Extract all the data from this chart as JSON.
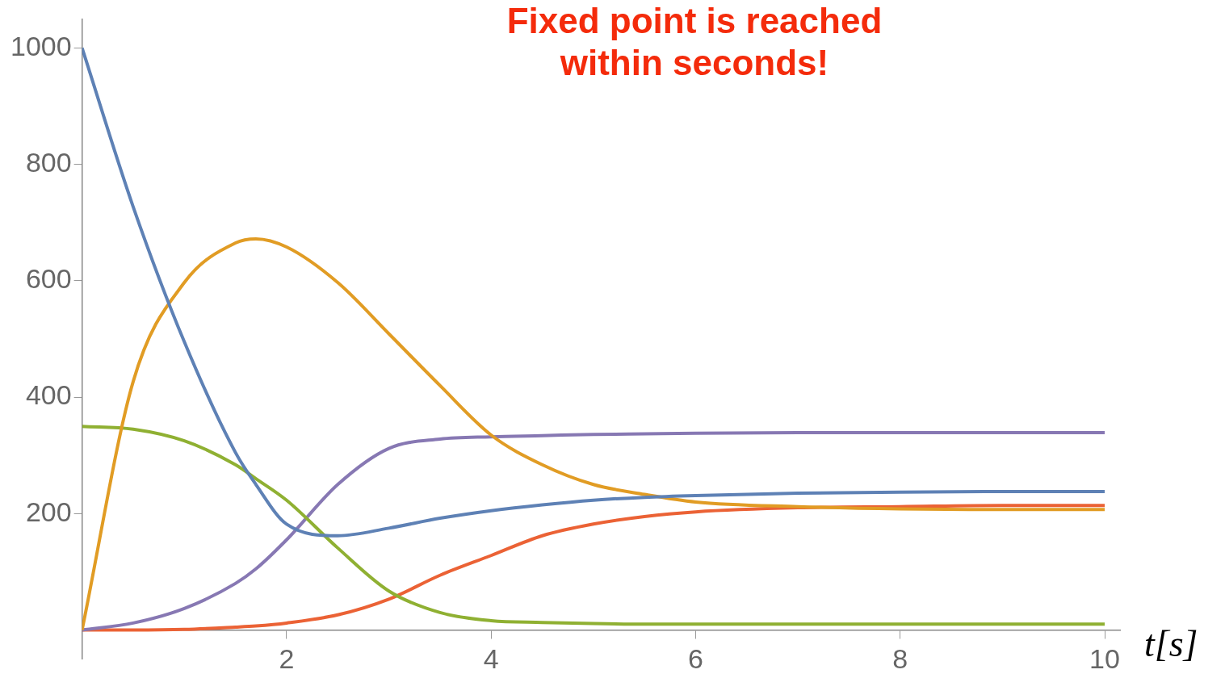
{
  "chart_data": {
    "type": "line",
    "title": "Fixed point is reached within seconds!",
    "xlabel": "t[s]",
    "x": [
      0,
      0.5,
      1,
      1.5,
      1.7,
      2,
      2.5,
      3,
      3.5,
      4,
      4.5,
      5,
      5.5,
      6,
      7,
      8,
      9,
      10
    ],
    "series": [
      {
        "color": "#5e81b5",
        "values": [
          1000,
          727,
          495,
          305,
          250,
          182,
          162,
          175,
          192,
          205,
          215,
          223,
          228,
          231,
          235,
          237,
          238,
          238
        ]
      },
      {
        "color": "#e19c24",
        "values": [
          0,
          427,
          597,
          665,
          672,
          658,
          597,
          509,
          420,
          335,
          284,
          250,
          233,
          220,
          212,
          208,
          207,
          207
        ]
      },
      {
        "color": "#8fb032",
        "values": [
          350,
          345,
          325,
          284,
          260,
          223,
          141,
          67,
          30,
          16,
          13,
          11,
          10,
          10,
          10,
          10,
          10,
          10
        ]
      },
      {
        "color": "#8778b3",
        "values": [
          0,
          12,
          37,
          80,
          105,
          155,
          250,
          312,
          328,
          332,
          334,
          336,
          337,
          338,
          339,
          339,
          339,
          339
        ]
      },
      {
        "color": "#eb6235",
        "values": [
          0,
          0,
          1,
          5,
          7,
          12,
          26,
          53,
          94,
          128,
          162,
          182,
          195,
          203,
          210,
          212,
          214,
          214
        ]
      }
    ],
    "xlim": [
      0,
      10.15
    ],
    "ylim": [
      -50,
      1050
    ],
    "xticks": [
      2,
      4,
      6,
      8,
      10
    ],
    "yticks": [
      200,
      400,
      600,
      800,
      1000
    ],
    "grid": false,
    "legend": false,
    "marker": "none",
    "line_style": "solid"
  }
}
